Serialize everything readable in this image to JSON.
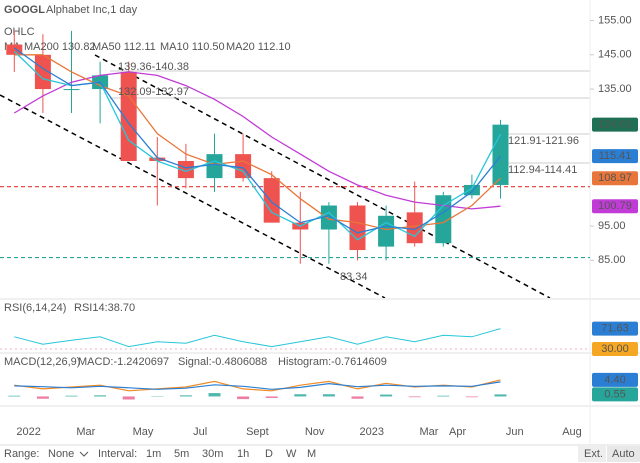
{
  "header": {
    "symbol": "GOOGL",
    "name": "Alphabet Inc,1 day",
    "ohlc": "OHLC",
    "ma": "MA"
  },
  "chart_data": [
    {
      "type": "candlestick",
      "x": [
        "2021-12",
        "2022-01",
        "2022-02",
        "2022-03",
        "2022-04",
        "2022-05",
        "2022-06",
        "2022-07",
        "2022-08",
        "2022-09",
        "2022-10",
        "2022-11",
        "2022-12",
        "2023-01",
        "2023-02",
        "2023-03",
        "2023-04",
        "2023-05"
      ],
      "open": [
        148,
        145,
        135,
        135,
        140,
        115,
        114,
        109,
        116,
        109,
        96,
        94,
        101,
        89,
        99,
        90,
        104,
        107
      ],
      "high": [
        152,
        151,
        152,
        143,
        143,
        121,
        119,
        122,
        122,
        111,
        105,
        102,
        102,
        101,
        108,
        105,
        110,
        126
      ],
      "low": [
        140,
        128,
        128,
        125,
        114,
        101,
        106,
        105,
        108,
        96,
        84,
        84,
        85,
        85,
        89,
        89,
        103,
        103
      ],
      "close": [
        145,
        135,
        135,
        139,
        114,
        114,
        109,
        116,
        109,
        96,
        94,
        101,
        88,
        98,
        90,
        104,
        107,
        124.61
      ],
      "up_color": "#26a69a",
      "down_color": "#ef5350",
      "series": [
        {
          "name": "MA200 130.82",
          "color": "#c13bd6",
          "values": [
            128,
            133,
            137,
            139,
            140,
            139,
            136,
            132,
            127,
            121,
            116,
            111,
            107,
            104,
            102,
            101,
            100,
            100.79
          ]
        },
        {
          "name": "MA50 112.11",
          "color": "#e8763a",
          "values": [
            145,
            145,
            140,
            136,
            133,
            122,
            116,
            113,
            114,
            110,
            103,
            97,
            96,
            94,
            95,
            96,
            101,
            108.97
          ]
        },
        {
          "name": "MA10 110.50",
          "color": "#26c6da",
          "values": [
            146,
            138,
            136,
            137,
            120,
            114,
            111,
            114,
            111,
            99,
            95,
            99,
            91,
            96,
            92,
            101,
            106,
            121.9
          ]
        },
        {
          "name": "MA20 112.10",
          "color": "#2a7fd4",
          "values": [
            147,
            141,
            136,
            137,
            125,
            115,
            112,
            113,
            112,
            102,
            96,
            98,
            93,
            95,
            94,
            99,
            105,
            115.41
          ]
        }
      ],
      "xlim": [
        "2021-12",
        "2023-08"
      ],
      "ylim": [
        74,
        161
      ],
      "yticks": [
        {
          "value": 85,
          "label": "85.00"
        },
        {
          "value": 95,
          "label": "95.00"
        },
        {
          "value": 135,
          "label": "135.00"
        },
        {
          "value": 145,
          "label": "145.00"
        },
        {
          "value": 155,
          "label": "155.00"
        }
      ],
      "xticks": [
        {
          "value": "2022-01",
          "label": "2022"
        },
        {
          "value": "2022-03",
          "label": "Mar"
        },
        {
          "value": "2022-05",
          "label": "May"
        },
        {
          "value": "2022-07",
          "label": "Jul"
        },
        {
          "value": "2022-09",
          "label": "Sept"
        },
        {
          "value": "2022-11",
          "label": "Nov"
        },
        {
          "value": "2023-01",
          "label": "2023"
        },
        {
          "value": "2023-03",
          "label": "Mar"
        },
        {
          "value": "2023-04",
          "label": "Apr"
        },
        {
          "value": "2023-06",
          "label": "Jun"
        },
        {
          "value": "2023-08",
          "label": "Aug"
        }
      ],
      "hlines": [
        {
          "value": 106.5,
          "color": "#e53935"
        },
        {
          "value": 85.8,
          "color": "#26a69a"
        }
      ],
      "annotations": [
        "139.36-140.38",
        "132.09-132.97",
        "121.91-121.96",
        "112.94-114.41",
        "83.34"
      ]
    },
    {
      "type": "line",
      "title": "RSI(6,14,24)",
      "ylim": [
        24,
        130
      ],
      "reference": {
        "value": 30,
        "label": "30.00",
        "color": "#f5a623"
      },
      "series": [
        {
          "name": "RSI14:38.70",
          "color": "#26c6da",
          "values": [
            55,
            40,
            48,
            55,
            35,
            45,
            42,
            58,
            45,
            35,
            45,
            55,
            40,
            55,
            45,
            58,
            55,
            71.63
          ]
        }
      ]
    },
    {
      "type": "macd",
      "title": "MACD(12,26,9)",
      "ylim": [
        -2,
        11
      ],
      "series": [
        {
          "name": "MACD:-1.2420697",
          "color": "#f08a24",
          "values": [
            3,
            2,
            2.5,
            3,
            1.5,
            2,
            2.5,
            4,
            2,
            1.5,
            3,
            4,
            2,
            3.5,
            2.5,
            3,
            2.5,
            4.4
          ],
          "value_labels": [
            null,
            null,
            null,
            null,
            null,
            null,
            null,
            null,
            null,
            null,
            null,
            null,
            null,
            null,
            null,
            null,
            null,
            "4.40"
          ]
        },
        {
          "name": "Signal:-0.4806088",
          "color": "#2a7fd4",
          "values": [
            2.8,
            2.6,
            2.3,
            2.7,
            2.3,
            1.9,
            2.2,
            3.1,
            2.7,
            1.9,
            2.4,
            3.4,
            2.6,
            3.0,
            2.7,
            2.8,
            2.7,
            3.85
          ]
        },
        {
          "name": "Histogram:-0.7614609",
          "color": "#e85d8a",
          "values": [
            0.2,
            -0.6,
            0.2,
            0.3,
            -0.8,
            0.1,
            0.3,
            0.9,
            -0.7,
            -0.4,
            0.6,
            0.6,
            -0.6,
            0.5,
            -0.2,
            0.2,
            -0.2,
            0.55
          ]
        }
      ]
    }
  ],
  "toolbar": {
    "range": "Range:",
    "range_value": "None",
    "interval": "Interval:",
    "intervals": [
      "1m",
      "5m",
      "30m",
      "1h",
      "D",
      "W",
      "M"
    ],
    "ext": "Ext.",
    "auto": "Auto"
  }
}
